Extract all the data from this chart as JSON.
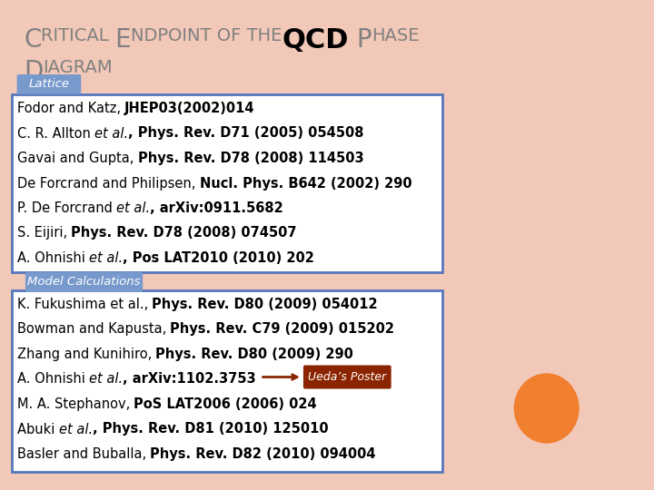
{
  "bg_outer": "#f2c8b8",
  "bg_inner": "#ffffff",
  "title_color": "#808080",
  "title_qcd_color": "#000000",
  "lattice_badge_bg": "#7799cc",
  "lattice_badge_text": "Lattice",
  "lattice_box_edge": "#5577bb",
  "model_badge_bg": "#7799cc",
  "model_badge_text": "Model Calculations",
  "model_box_edge": "#5577bb",
  "ueda_bg": "#8B2500",
  "ueda_text": "Ueda’s Poster",
  "orange_circle": "#f08030",
  "text_color": "#000000",
  "lattice_lines": [
    {
      "parts": [
        {
          "text": "Fodor and Katz, ",
          "style": "normal"
        },
        {
          "text": "JHEP03(2002)014",
          "style": "bold"
        }
      ]
    },
    {
      "parts": [
        {
          "text": "C. R. Allton ",
          "style": "normal"
        },
        {
          "text": "et al.",
          "style": "italic"
        },
        {
          "text": ", Phys. Rev. D71 (2005) 054508",
          "style": "bold"
        }
      ]
    },
    {
      "parts": [
        {
          "text": "Gavai and Gupta, ",
          "style": "normal"
        },
        {
          "text": "Phys. Rev. D78 (2008) 114503",
          "style": "bold"
        }
      ]
    },
    {
      "parts": [
        {
          "text": "De Forcrand and Philipsen, ",
          "style": "normal"
        },
        {
          "text": "Nucl. Phys. B642 (2002) 290",
          "style": "bold"
        }
      ]
    },
    {
      "parts": [
        {
          "text": "P. De Forcrand ",
          "style": "normal"
        },
        {
          "text": "et al.",
          "style": "italic"
        },
        {
          "text": ", arXiv:0911.5682",
          "style": "bold"
        }
      ]
    },
    {
      "parts": [
        {
          "text": "S. Eijiri, ",
          "style": "normal"
        },
        {
          "text": "Phys. Rev. D78 (2008) 074507",
          "style": "bold"
        }
      ]
    },
    {
      "parts": [
        {
          "text": "A. Ohnishi ",
          "style": "normal"
        },
        {
          "text": "et al.",
          "style": "italic"
        },
        {
          "text": ", Pos LAT2010 (2010) 202",
          "style": "bold"
        }
      ]
    }
  ],
  "model_lines": [
    {
      "parts": [
        {
          "text": "K. Fukushima et al., ",
          "style": "normal"
        },
        {
          "text": "Phys. Rev. D80 (2009) 054012",
          "style": "bold"
        }
      ]
    },
    {
      "parts": [
        {
          "text": "Bowman and Kapusta, ",
          "style": "normal"
        },
        {
          "text": "Phys. Rev. C79 (2009) 015202",
          "style": "bold"
        }
      ]
    },
    {
      "parts": [
        {
          "text": "Zhang and Kunihiro, ",
          "style": "normal"
        },
        {
          "text": "Phys. Rev. D80 (2009) 290",
          "style": "bold"
        }
      ]
    },
    {
      "parts": [
        {
          "text": "A. Ohnishi ",
          "style": "normal"
        },
        {
          "text": "et al.",
          "style": "italic"
        },
        {
          "text": ", arXiv:1102.3753",
          "style": "bold"
        }
      ],
      "has_ueda": true
    },
    {
      "parts": [
        {
          "text": "M. A. Stephanov, ",
          "style": "normal"
        },
        {
          "text": "PoS LAT2006 (2006) 024",
          "style": "bold"
        }
      ]
    },
    {
      "parts": [
        {
          "text": "Abuki ",
          "style": "normal"
        },
        {
          "text": "et al.",
          "style": "italic"
        },
        {
          "text": ", Phys. Rev. D81 (2010) 125010",
          "style": "bold"
        }
      ]
    },
    {
      "parts": [
        {
          "text": "Basler and Buballa, ",
          "style": "normal"
        },
        {
          "text": "Phys. Rev. D82 (2010) 094004",
          "style": "bold"
        }
      ]
    }
  ]
}
